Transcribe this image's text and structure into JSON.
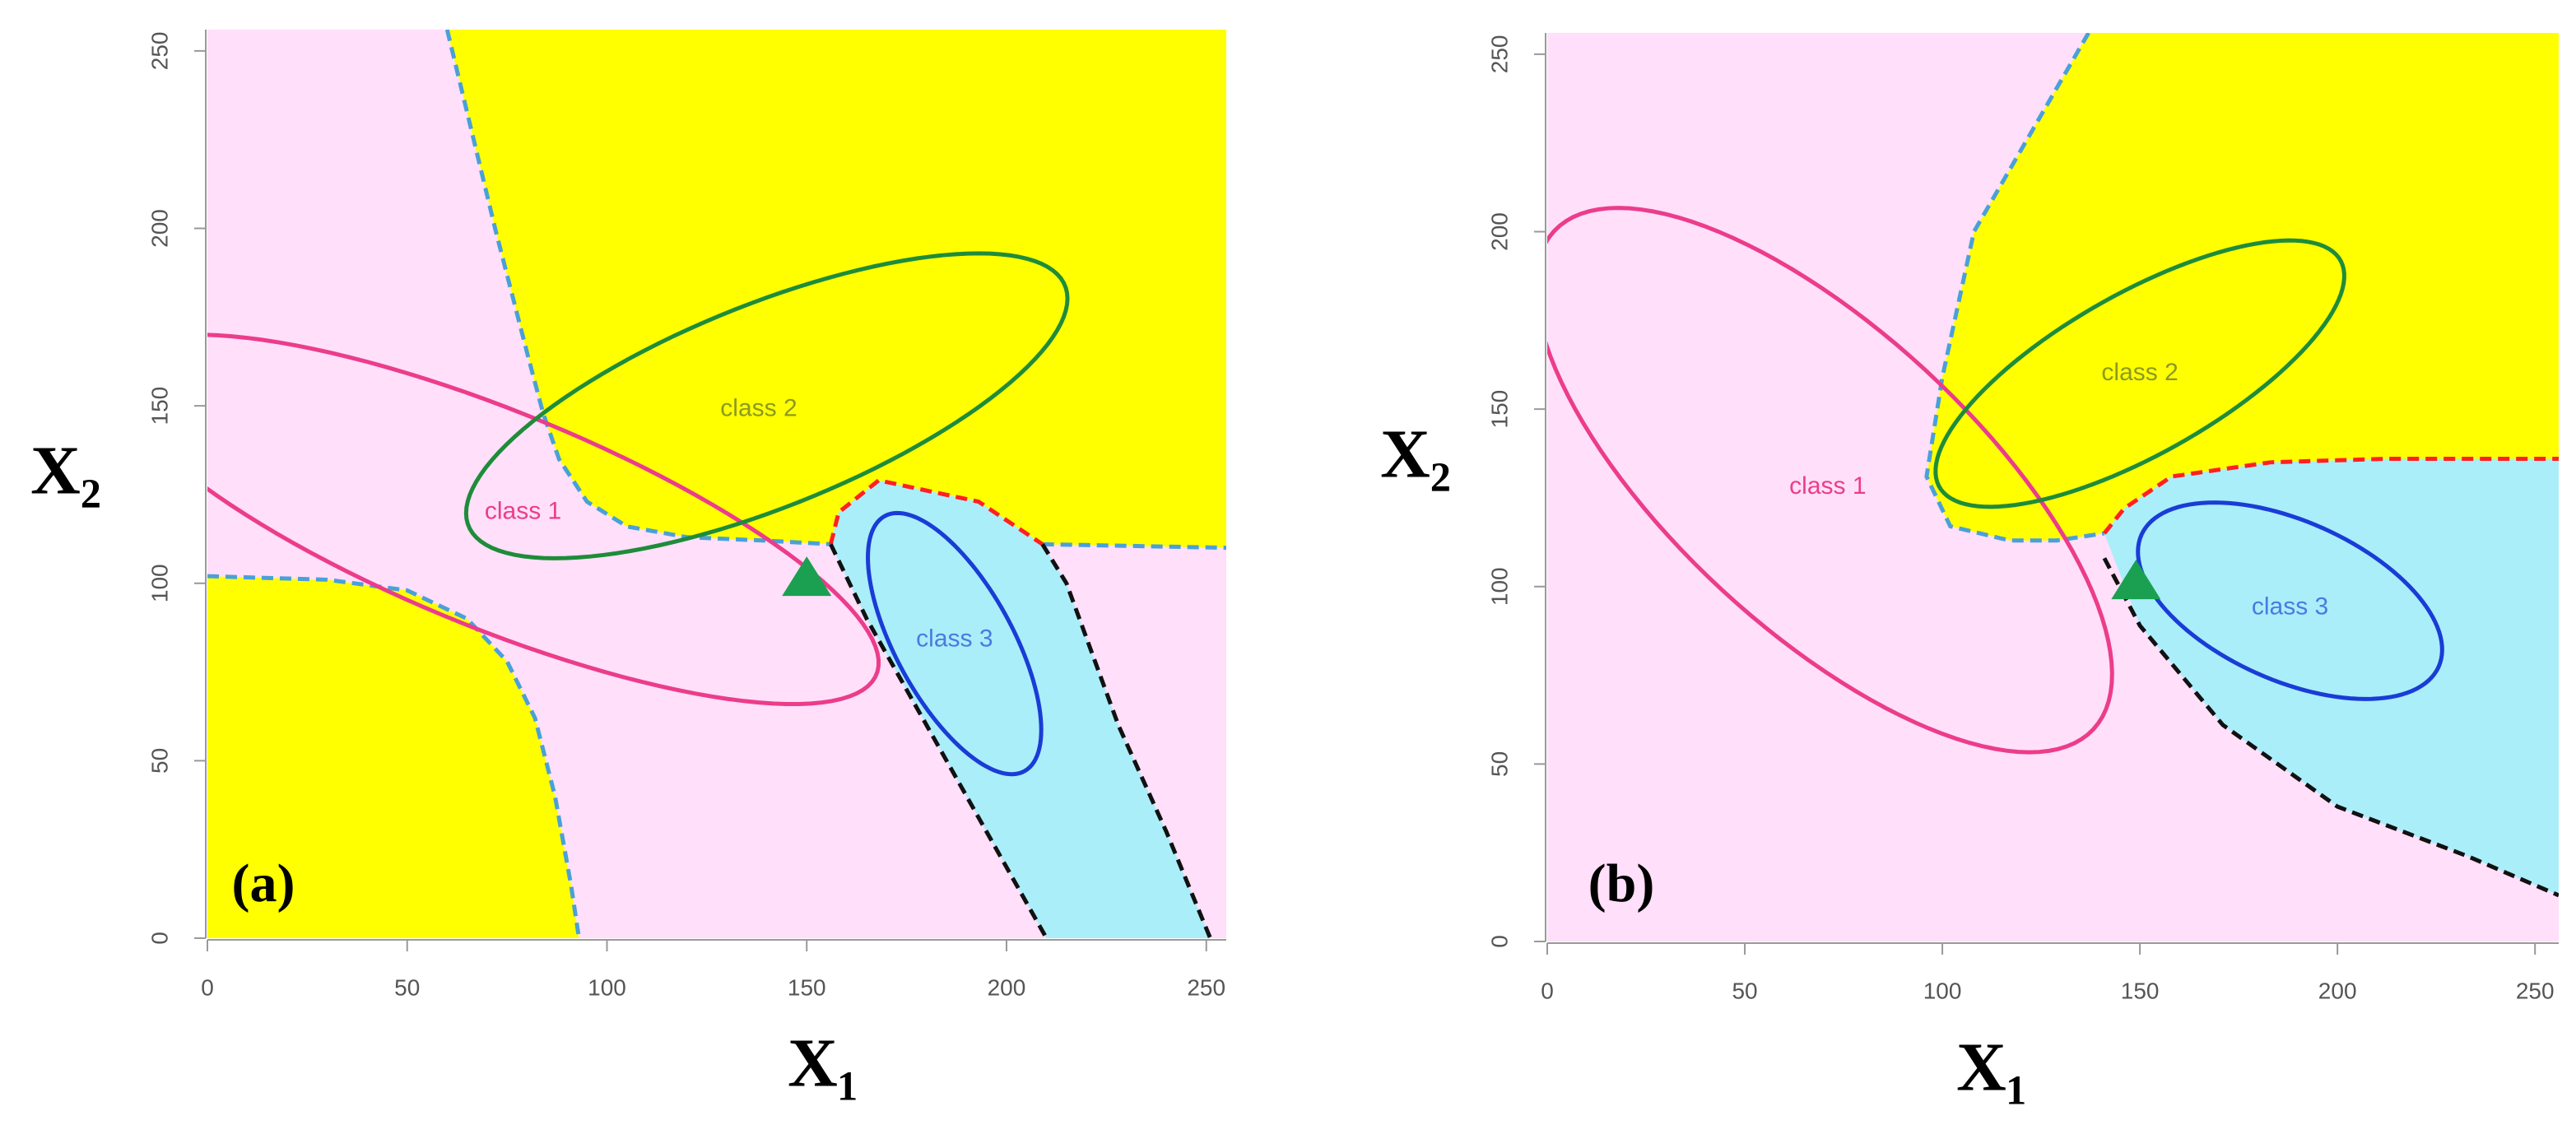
{
  "chart_data": [
    {
      "type": "region",
      "panel_label": "(a)",
      "x_label": "X₁",
      "y_label": "X₂",
      "xlim": [
        0,
        255
      ],
      "ylim": [
        0,
        256
      ],
      "xticks": [
        0,
        50,
        100,
        150,
        200,
        250
      ],
      "yticks": [
        0,
        50,
        100,
        150,
        200,
        250
      ],
      "background": "#ffdff9",
      "regions": [
        {
          "color": "#ffff00",
          "x": [
            60,
            72,
            80,
            84,
            88,
            95,
            105,
            120,
            140,
            156,
            158,
            168,
            193,
            209,
            255,
            255
          ],
          "y": [
            256,
            200,
            165,
            148,
            135,
            123,
            116,
            113,
            112,
            111,
            120,
            129,
            123,
            111,
            110,
            256
          ]
        },
        {
          "color": "#aaeefa",
          "x": [
            156,
            158,
            168,
            193,
            209,
            215,
            228,
            240,
            251,
            210,
            195,
            180,
            165
          ],
          "y": [
            111,
            120,
            129,
            123,
            111,
            100,
            60,
            30,
            0,
            0,
            30,
            60,
            90
          ]
        },
        {
          "color": "#ffff00",
          "x": [
            0,
            30,
            50,
            65,
            75,
            82,
            87,
            91,
            93,
            0
          ],
          "y": [
            102,
            101,
            98,
            90,
            78,
            62,
            40,
            15,
            0,
            0
          ]
        }
      ],
      "boundaries": [
        {
          "color": "#4aa0d8",
          "x": [
            60,
            72,
            80,
            84,
            88,
            95,
            105,
            120,
            140,
            156
          ],
          "y": [
            256,
            200,
            165,
            148,
            135,
            123,
            116,
            113,
            112,
            111
          ]
        },
        {
          "color": "#4aa0d8",
          "x": [
            209,
            255
          ],
          "y": [
            111,
            110
          ]
        },
        {
          "color": "#4aa0d8",
          "x": [
            0,
            30,
            50,
            65,
            75,
            82,
            87,
            91,
            93
          ],
          "y": [
            102,
            101,
            98,
            90,
            78,
            62,
            40,
            15,
            0
          ]
        },
        {
          "color": "#ff2020",
          "x": [
            156,
            158,
            168,
            193,
            209
          ],
          "y": [
            111,
            120,
            129,
            123,
            111
          ]
        },
        {
          "color": "#111111",
          "x": [
            156,
            165,
            180,
            195,
            210
          ],
          "y": [
            111,
            90,
            60,
            30,
            0
          ]
        },
        {
          "color": "#111111",
          "x": [
            209,
            215,
            228,
            240,
            251
          ],
          "y": [
            111,
            100,
            60,
            30,
            0
          ]
        }
      ],
      "ellipses": [
        {
          "name": "class 1",
          "color": "#ec3c8c",
          "label_color": "#ec3c8c",
          "center": [
            72,
            118
          ],
          "radii": [
            105,
            30
          ],
          "angle": -25,
          "label_at": [
            79,
            120
          ]
        },
        {
          "name": "class 2",
          "color": "#1e8c3a",
          "label_color": "#8a9a20",
          "center": [
            140,
            150
          ],
          "radii": [
            82,
            28
          ],
          "angle": 25,
          "label_at": [
            138,
            149
          ]
        },
        {
          "name": "class 3",
          "color": "#1a3cd6",
          "label_color": "#4a7ae0",
          "center": [
            187,
            83
          ],
          "radii": [
            40,
            15
          ],
          "angle": -65,
          "label_at": [
            187,
            84
          ]
        }
      ],
      "point": {
        "x": 150,
        "y": 102,
        "color": "#1aa050"
      }
    },
    {
      "type": "region",
      "panel_label": "(b)",
      "x_label": "X₁",
      "y_label": "X₂",
      "xlim": [
        0,
        256
      ],
      "ylim": [
        0,
        256
      ],
      "xticks": [
        0,
        50,
        100,
        150,
        200,
        250
      ],
      "yticks": [
        0,
        50,
        100,
        150,
        200,
        250
      ],
      "background": "#ffdff9",
      "regions": [
        {
          "color": "#ffff00",
          "x": [
            137,
            108,
            100,
            96,
            102,
            117,
            129,
            141,
            146,
            158,
            183,
            212,
            256,
            256
          ],
          "y": [
            256,
            200,
            159,
            131,
            117,
            113,
            113,
            115,
            122,
            131,
            135,
            136,
            136,
            256
          ]
        },
        {
          "color": "#aaeefa",
          "x": [
            141,
            146,
            158,
            183,
            212,
            256,
            256,
            233,
            200,
            171,
            150
          ],
          "y": [
            115,
            122,
            131,
            135,
            136,
            136,
            13,
            24,
            38,
            61,
            89
          ]
        }
      ],
      "boundaries": [
        {
          "color": "#4aa0d8",
          "x": [
            137,
            108,
            100,
            96,
            102,
            117,
            129,
            141
          ],
          "y": [
            256,
            200,
            159,
            131,
            117,
            113,
            113,
            115
          ]
        },
        {
          "color": "#ff2020",
          "x": [
            141,
            146,
            158,
            183,
            212,
            256
          ],
          "y": [
            115,
            122,
            131,
            135,
            136,
            136
          ]
        },
        {
          "color": "#111111",
          "x": [
            141,
            150,
            171,
            200,
            233,
            256
          ],
          "y": [
            108,
            89,
            61,
            38,
            24,
            13
          ]
        }
      ],
      "ellipses": [
        {
          "name": "class 1",
          "color": "#ec3c8c",
          "label_color": "#ec3c8c",
          "center": [
            70,
            130
          ],
          "radii": [
            98,
            40
          ],
          "angle": -47,
          "label_at": [
            71,
            128
          ]
        },
        {
          "name": "class 2",
          "color": "#1e8c3a",
          "label_color": "#8a9a20",
          "center": [
            150,
            160
          ],
          "radii": [
            60,
            22
          ],
          "angle": 33,
          "label_at": [
            150,
            160
          ]
        },
        {
          "name": "class 3",
          "color": "#1a3cd6",
          "label_color": "#4a7ae0",
          "center": [
            188,
            96
          ],
          "radii": [
            42,
            22
          ],
          "angle": -28,
          "label_at": [
            188,
            94
          ]
        }
      ],
      "point": {
        "x": 149,
        "y": 102,
        "color": "#1aa050"
      }
    }
  ]
}
